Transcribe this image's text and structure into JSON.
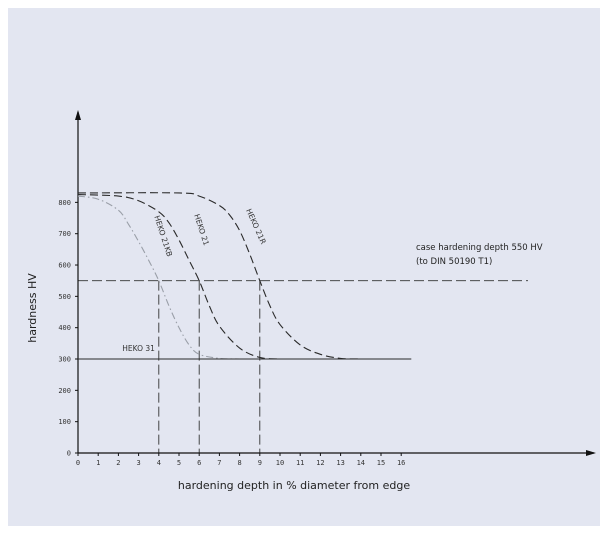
{
  "chart_data": {
    "type": "line",
    "xlabel": "hardening depth in % diameter from edge",
    "ylabel": "hardness HV",
    "xlim": [
      0,
      17
    ],
    "ylim": [
      0,
      900
    ],
    "xticks": [
      0,
      1,
      2,
      3,
      4,
      5,
      6,
      7,
      8,
      9,
      10,
      11,
      12,
      13,
      14,
      15,
      16
    ],
    "xtick_labels": [
      "0",
      "1",
      "2",
      "3",
      "4",
      "5",
      "6",
      "7",
      "8",
      "9",
      "10",
      "11",
      "12",
      "13",
      "14",
      "15",
      "16"
    ],
    "yticks": [
      0,
      100,
      200,
      300,
      400,
      500,
      600,
      700,
      800
    ],
    "ytick_labels": [
      "0",
      "100",
      "200",
      "300",
      "400",
      "500",
      "600",
      "700",
      "800"
    ],
    "grid": false,
    "series": [
      {
        "name": "HEKO 21KB",
        "color": "#9a9fa8",
        "dash": "dashdot",
        "x": [
          0,
          1,
          2,
          2.5,
          3,
          3.5,
          4,
          4.5,
          5,
          5.5,
          6,
          7,
          8
        ],
        "y": [
          820,
          810,
          775,
          730,
          675,
          615,
          550,
          470,
          400,
          345,
          315,
          302,
          300
        ]
      },
      {
        "name": "HEKO 21",
        "color": "#2a2a2a",
        "dash": "longdash",
        "x": [
          0,
          2,
          3,
          4,
          4.5,
          5,
          5.5,
          6,
          6.5,
          7,
          8,
          9,
          10
        ],
        "y": [
          825,
          820,
          805,
          770,
          735,
          680,
          615,
          550,
          470,
          405,
          335,
          305,
          300
        ]
      },
      {
        "name": "HEKO 21R",
        "color": "#2a2a2a",
        "dash": "longdash",
        "x": [
          0,
          5,
          6,
          7,
          7.5,
          8,
          8.5,
          9,
          9.5,
          10,
          11,
          12,
          13,
          14
        ],
        "y": [
          830,
          830,
          820,
          790,
          760,
          710,
          635,
          550,
          470,
          410,
          345,
          315,
          302,
          300
        ]
      },
      {
        "name": "HEKO 31",
        "color": "#2a2a2a",
        "dash": "solid",
        "x": [
          0,
          16.5
        ],
        "y": [
          300,
          300
        ]
      }
    ],
    "reference_lines": [
      {
        "axis": "y",
        "value": 550
      },
      {
        "axis": "y",
        "value": 300
      },
      {
        "axis": "x",
        "value": 4
      },
      {
        "axis": "x",
        "value": 6
      },
      {
        "axis": "x",
        "value": 9
      }
    ],
    "annotations": {
      "case_line1": "case hardening depth 550 HV",
      "case_line2": "(to DIN 50190 T1)"
    }
  }
}
